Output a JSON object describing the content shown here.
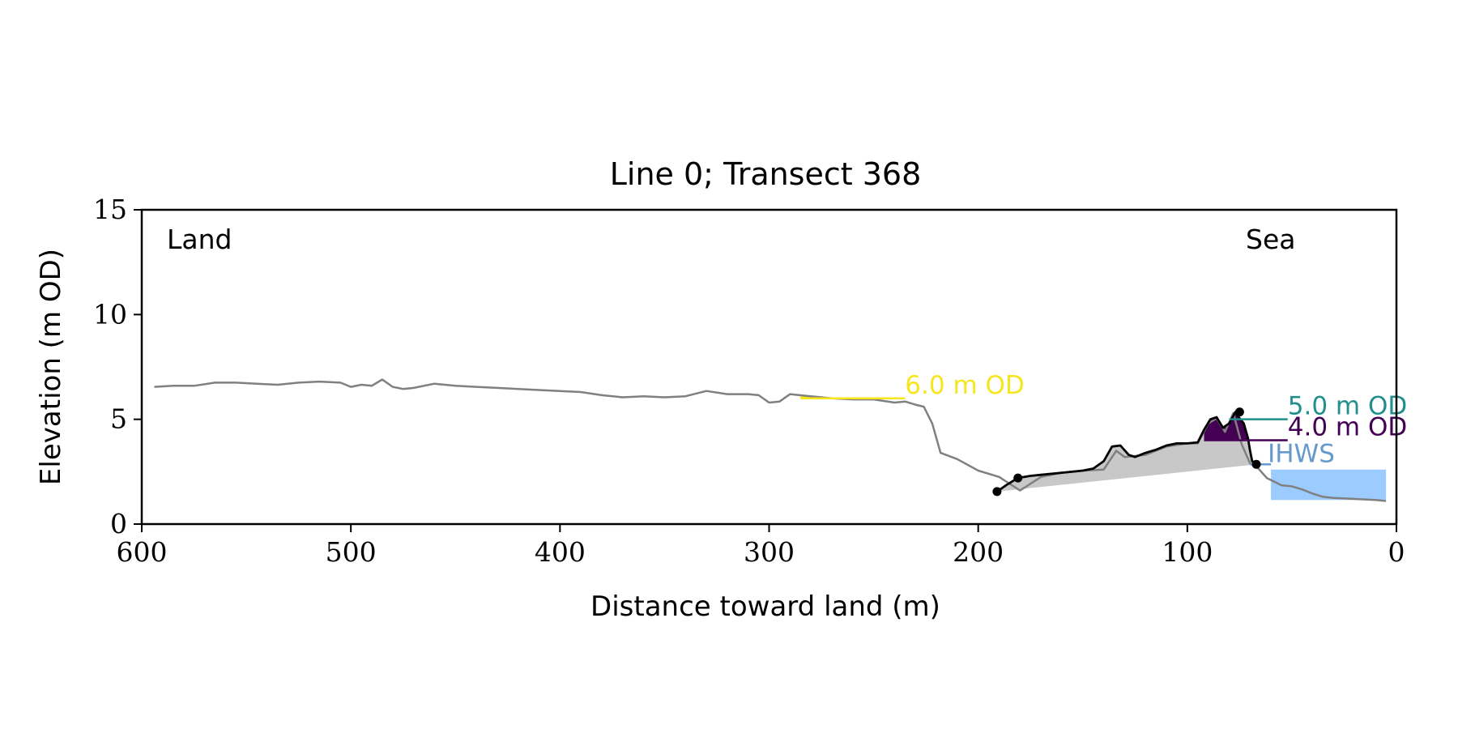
{
  "chart_data": {
    "type": "line",
    "title": "Line 0; Transect 368",
    "xlabel": "Distance toward land (m)",
    "ylabel": "Elevation (m OD)",
    "xlim": [
      600,
      0
    ],
    "ylim": [
      0,
      15
    ],
    "x_reversed": true,
    "grid": false,
    "xticks": [
      600,
      500,
      400,
      300,
      200,
      100,
      0
    ],
    "yticks": [
      0,
      5,
      10,
      15
    ],
    "side_labels": {
      "left": "Land",
      "right": "Sea"
    },
    "colors": {
      "profile": "#808080",
      "dune_profile": "#000000",
      "dune_fill": "#c8c8c8",
      "water": "#9ccbff",
      "level_6": "#f5e61e",
      "level_5": "#21908d",
      "level_4": "#440154",
      "ihws": "#6699cc",
      "axis": "#000000"
    },
    "profile": {
      "x": [
        594,
        585,
        575,
        565,
        555,
        545,
        535,
        525,
        515,
        505,
        500,
        495,
        490,
        485,
        480,
        475,
        470,
        460,
        450,
        440,
        430,
        420,
        410,
        400,
        390,
        380,
        370,
        360,
        350,
        340,
        330,
        320,
        310,
        305,
        300,
        295,
        290,
        280,
        270,
        260,
        250,
        240,
        235,
        230,
        226,
        222,
        218,
        210,
        200,
        190,
        180,
        170,
        160,
        150,
        140,
        134,
        130,
        120,
        110,
        100,
        95,
        90,
        86,
        82,
        78,
        74,
        70,
        66,
        62,
        58,
        55,
        50,
        45,
        40,
        35,
        30,
        20,
        10,
        5
      ],
      "y": [
        6.55,
        6.6,
        6.6,
        6.75,
        6.75,
        6.7,
        6.65,
        6.75,
        6.8,
        6.75,
        6.55,
        6.65,
        6.6,
        6.9,
        6.55,
        6.45,
        6.5,
        6.7,
        6.6,
        6.55,
        6.5,
        6.45,
        6.4,
        6.35,
        6.3,
        6.15,
        6.05,
        6.1,
        6.05,
        6.1,
        6.35,
        6.2,
        6.2,
        6.15,
        5.8,
        5.85,
        6.2,
        6.1,
        6.0,
        5.95,
        5.95,
        5.8,
        5.85,
        5.7,
        5.6,
        4.8,
        3.4,
        3.1,
        2.55,
        2.25,
        1.6,
        2.25,
        2.45,
        2.55,
        2.6,
        3.5,
        3.2,
        3.3,
        3.7,
        3.85,
        3.85,
        4.8,
        5.05,
        4.4,
        5.3,
        3.8,
        2.9,
        2.65,
        2.2,
        2.0,
        1.85,
        1.8,
        1.65,
        1.45,
        1.3,
        1.25,
        1.2,
        1.15,
        1.1
      ]
    },
    "dune_profile": {
      "x": [
        191,
        186,
        181,
        175,
        170,
        165,
        160,
        150,
        145,
        140,
        136,
        132,
        128,
        125,
        120,
        115,
        110,
        105,
        100,
        95,
        92,
        89,
        86,
        83,
        80,
        77,
        75,
        73,
        71,
        70,
        69,
        67
      ],
      "y": [
        1.55,
        1.9,
        2.2,
        2.3,
        2.35,
        2.4,
        2.45,
        2.55,
        2.65,
        3.0,
        3.7,
        3.75,
        3.3,
        3.2,
        3.4,
        3.55,
        3.75,
        3.85,
        3.85,
        3.9,
        4.5,
        5.0,
        5.1,
        4.6,
        4.8,
        5.35,
        5.05,
        4.8,
        4.1,
        3.5,
        3.0,
        2.85
      ]
    },
    "dune_points": [
      {
        "x": 191,
        "y": 1.55
      },
      {
        "x": 181,
        "y": 2.2
      },
      {
        "x": 75,
        "y": 5.35
      },
      {
        "x": 67,
        "y": 2.85
      }
    ],
    "water_region": {
      "x": [
        60,
        5
      ],
      "y": [
        1.15,
        2.6
      ]
    },
    "levels": [
      {
        "label": "6.0 m OD",
        "elevation": 6.0,
        "x": [
          285,
          235
        ]
      },
      {
        "label": "5.0 m OD",
        "elevation": 5.0,
        "x": [
          80,
          52
        ]
      },
      {
        "label": "4.0 m OD",
        "elevation": 4.0,
        "x": [
          92,
          52
        ]
      },
      {
        "label": "IHWS",
        "elevation": 2.85,
        "x": [
          70,
          60
        ]
      }
    ]
  }
}
